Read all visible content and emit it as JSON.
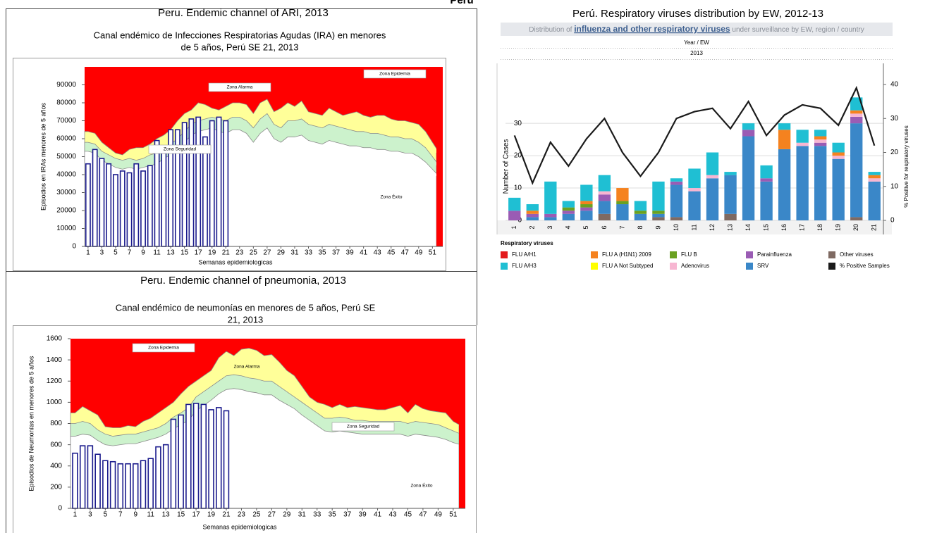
{
  "page_title": "Perú",
  "chart_data": [
    {
      "type": "area",
      "title": "Peru. Endemic channel of ARI, 2013",
      "subtitle": [
        "Canal endémico de Infecciones Respiratorias Agudas (IRA) en menores",
        "de 5 años, Perú SE 21, 2013"
      ],
      "y_label": "Episodios en IRAs menores de 5 años",
      "x_label": "Semanas epidemiologicas",
      "annotations": [
        "Zona Epidemia",
        "Zona Alarma",
        "Zona Seguridad",
        "Zona Éxito"
      ],
      "colors": {
        "epidemic": "#ff0000",
        "alarm": "#ffff99",
        "security": "#ccf2cc",
        "success": "#ffffff",
        "bars": "#1a1a8c"
      },
      "xlim": [
        0.5,
        52.5
      ],
      "xticks": [
        1,
        3,
        5,
        7,
        9,
        11,
        13,
        15,
        17,
        19,
        21,
        23,
        25,
        27,
        29,
        31,
        33,
        35,
        37,
        39,
        41,
        43,
        45,
        47,
        49,
        51
      ],
      "ylim": [
        0,
        100000
      ],
      "yticks": [
        0,
        10000,
        20000,
        30000,
        40000,
        50000,
        60000,
        70000,
        80000,
        90000
      ],
      "x": [
        1,
        2,
        3,
        4,
        5,
        6,
        7,
        8,
        9,
        10,
        11,
        12,
        13,
        14,
        15,
        16,
        17,
        18,
        19,
        20,
        21,
        22,
        23,
        24,
        25,
        26,
        27,
        28,
        29,
        30,
        31,
        32,
        33,
        34,
        35,
        36,
        37,
        38,
        39,
        40,
        41,
        42,
        43,
        44,
        45,
        46,
        47,
        48,
        49,
        50,
        51,
        52
      ],
      "bar_values": [
        46000,
        54000,
        49000,
        46000,
        40000,
        42000,
        41000,
        46000,
        42000,
        45000,
        59000,
        52000,
        65000,
        65000,
        69000,
        71000,
        72000,
        61000,
        70000,
        72000,
        70000,
        null,
        null,
        null,
        null,
        null,
        null,
        null,
        null,
        null,
        null,
        null,
        null,
        null,
        null,
        null,
        null,
        null,
        null,
        null,
        null,
        null,
        null,
        null,
        null,
        null,
        null,
        null,
        null,
        null,
        null,
        null
      ],
      "alarm_upper": [
        64000,
        63000,
        58000,
        55000,
        52000,
        51000,
        54000,
        55000,
        55000,
        57000,
        60000,
        62000,
        65000,
        70000,
        74000,
        76000,
        80000,
        79000,
        77000,
        76000,
        78000,
        80000,
        80000,
        79000,
        74000,
        80000,
        82000,
        75000,
        77000,
        80000,
        78000,
        81000,
        75000,
        74000,
        73000,
        77000,
        75000,
        73000,
        74000,
        75000,
        73000,
        72000,
        73000,
        73000,
        71000,
        70000,
        70000,
        69000,
        68000,
        64000,
        58000,
        52000
      ],
      "security_upper": [
        58000,
        57000,
        53000,
        51000,
        49000,
        48000,
        49000,
        48000,
        49000,
        51000,
        52000,
        55000,
        57000,
        60000,
        64000,
        68000,
        70000,
        71000,
        72000,
        71000,
        70000,
        72000,
        72000,
        70000,
        66000,
        71000,
        74000,
        68000,
        66000,
        70000,
        70000,
        71000,
        68000,
        67000,
        66000,
        68000,
        67000,
        66000,
        65000,
        64000,
        64000,
        63000,
        63000,
        62000,
        61000,
        61000,
        60000,
        60000,
        58000,
        55000,
        50000,
        45000
      ],
      "security_lower": [
        53000,
        52000,
        48000,
        46000,
        44000,
        43000,
        44000,
        43000,
        44000,
        45000,
        46000,
        49000,
        51000,
        54000,
        58000,
        62000,
        64000,
        65000,
        66000,
        64000,
        63000,
        65000,
        65000,
        63000,
        58000,
        63000,
        66000,
        60000,
        58000,
        61000,
        61000,
        62000,
        59000,
        58000,
        57000,
        59000,
        58000,
        57000,
        56000,
        56000,
        55000,
        55000,
        54000,
        54000,
        53000,
        53000,
        52000,
        52000,
        50000,
        47000,
        43000,
        39000
      ]
    },
    {
      "type": "area",
      "title": "Peru. Endemic channel of pneumonia, 2013",
      "subtitle": [
        "Canal endémico de neumonías en menores de 5 años, Perú SE",
        "21, 2013"
      ],
      "y_label": "Episodios de Neumonías en menores de 5 años",
      "x_label": "Semanas epidemiologicas",
      "annotations": [
        "Zona Epidemia",
        "Zona Alarma",
        "Zona Seguridad",
        "Zona Éxito"
      ],
      "colors": {
        "epidemic": "#ff0000",
        "alarm": "#ffff99",
        "security": "#ccf2cc",
        "success": "#ffffff",
        "bars": "#1a1a8c"
      },
      "xlim": [
        0.4,
        52.6
      ],
      "xticks": [
        1,
        3,
        5,
        7,
        9,
        11,
        13,
        15,
        17,
        19,
        21,
        23,
        25,
        27,
        29,
        31,
        33,
        35,
        37,
        39,
        41,
        43,
        45,
        47,
        49,
        51
      ],
      "ylim": [
        0,
        1600
      ],
      "yticks": [
        0,
        200,
        400,
        600,
        800,
        1000,
        1200,
        1400,
        1600
      ],
      "x": [
        1,
        2,
        3,
        4,
        5,
        6,
        7,
        8,
        9,
        10,
        11,
        12,
        13,
        14,
        15,
        16,
        17,
        18,
        19,
        20,
        21,
        22,
        23,
        24,
        25,
        26,
        27,
        28,
        29,
        30,
        31,
        32,
        33,
        34,
        35,
        36,
        37,
        38,
        39,
        40,
        41,
        42,
        43,
        44,
        45,
        46,
        47,
        48,
        49,
        50,
        51,
        52
      ],
      "bar_values": [
        520,
        590,
        590,
        510,
        450,
        440,
        420,
        420,
        420,
        450,
        470,
        580,
        600,
        840,
        880,
        980,
        990,
        980,
        930,
        950,
        920,
        null,
        null,
        null,
        null,
        null,
        null,
        null,
        null,
        null,
        null,
        null,
        null,
        null,
        null,
        null,
        null,
        null,
        null,
        null,
        null,
        null,
        null,
        null,
        null,
        null,
        null,
        null,
        null,
        null,
        null,
        null
      ],
      "alarm_upper": [
        900,
        960,
        920,
        880,
        770,
        760,
        760,
        780,
        770,
        820,
        850,
        900,
        950,
        1000,
        1080,
        1150,
        1200,
        1250,
        1300,
        1420,
        1480,
        1440,
        1500,
        1510,
        1490,
        1440,
        1450,
        1380,
        1300,
        1250,
        1150,
        1050,
        1000,
        980,
        950,
        980,
        950,
        960,
        950,
        940,
        930,
        930,
        950,
        970,
        900,
        980,
        940,
        920,
        910,
        900,
        820,
        780
      ],
      "security_upper": [
        800,
        820,
        800,
        740,
        700,
        680,
        690,
        700,
        700,
        720,
        740,
        760,
        800,
        860,
        900,
        950,
        1050,
        1100,
        1150,
        1200,
        1250,
        1260,
        1250,
        1230,
        1220,
        1200,
        1200,
        1150,
        1100,
        1050,
        1000,
        950,
        900,
        850,
        850,
        860,
        850,
        830,
        830,
        820,
        820,
        820,
        820,
        820,
        800,
        820,
        810,
        800,
        790,
        760,
        730,
        700
      ],
      "security_lower": [
        680,
        700,
        690,
        640,
        600,
        590,
        600,
        610,
        610,
        630,
        650,
        670,
        700,
        750,
        790,
        830,
        920,
        970,
        1020,
        1080,
        1120,
        1130,
        1120,
        1100,
        1090,
        1070,
        1070,
        1020,
        980,
        940,
        880,
        830,
        780,
        730,
        720,
        730,
        720,
        710,
        700,
        700,
        700,
        700,
        700,
        700,
        680,
        700,
        690,
        680,
        670,
        650,
        620,
        600
      ]
    },
    {
      "type": "bar",
      "stacked": true,
      "title": "Perú. Respiratory viruses distribution by EW, 2012-13",
      "subtitle": [
        "Distribution of ",
        "influenza and other respiratory viruses",
        " under surveillance by EW, region / country"
      ],
      "x_header": "Year / EW",
      "year": "2013",
      "y_label": "Number of Cases",
      "y2_label": "% Positive for respiratory viruses",
      "legend_title": "Respiratory viruses",
      "grid": true,
      "categories": [
        "1",
        "2",
        "3",
        "4",
        "5",
        "6",
        "7",
        "8",
        "9",
        "10",
        "11",
        "12",
        "13",
        "14",
        "15",
        "16",
        "17",
        "18",
        "19",
        "20",
        "21"
      ],
      "ylim": [
        0,
        42
      ],
      "yticks": [
        0,
        10,
        20,
        30
      ],
      "y2lim": [
        0,
        40
      ],
      "y2ticks": [
        0,
        10,
        20,
        30,
        40
      ],
      "series": [
        {
          "name": "FLU A/H1",
          "color": "#e31a1c",
          "values": [
            0,
            0,
            0,
            0,
            0,
            0,
            0,
            0,
            0,
            0,
            0,
            0,
            0,
            0,
            0,
            0,
            0,
            0,
            0,
            0,
            0
          ]
        },
        {
          "name": "FLU A/H3",
          "color": "#1fbfd3",
          "values": [
            4,
            2,
            10,
            2,
            5,
            5,
            0,
            3,
            9,
            1,
            6,
            7,
            1,
            2,
            4,
            2,
            4,
            2,
            3,
            4,
            1
          ]
        },
        {
          "name": "FLU A (H1N1) 2009",
          "color": "#f5821f",
          "values": [
            0,
            1,
            0,
            0,
            1,
            0,
            4,
            0,
            0,
            0,
            0,
            0,
            0,
            0,
            0,
            6,
            0,
            1,
            1,
            1,
            1
          ]
        },
        {
          "name": "FLU A Not Subtyped",
          "color": "#ffff00",
          "values": [
            0,
            0,
            0,
            0,
            0,
            0,
            0,
            0,
            0,
            0,
            0,
            0,
            0,
            0,
            0,
            0,
            0,
            0,
            0,
            0,
            0
          ]
        },
        {
          "name": "FLU B",
          "color": "#6aa121",
          "values": [
            0,
            0,
            0,
            1,
            1,
            0,
            1,
            1,
            1,
            0,
            0,
            0,
            0,
            0,
            0,
            0,
            0,
            0,
            0,
            0,
            0
          ]
        },
        {
          "name": "Adenovirus",
          "color": "#f7b6d2",
          "values": [
            0,
            0,
            0,
            0,
            0,
            1,
            0,
            0,
            0,
            0,
            1,
            1,
            0,
            0,
            0,
            0,
            1,
            1,
            1,
            1,
            1
          ]
        },
        {
          "name": "Parainfluenza",
          "color": "#9a5cb4",
          "values": [
            3,
            1,
            1,
            1,
            1,
            2,
            0,
            0,
            0,
            1,
            0,
            0,
            0,
            2,
            1,
            0,
            0,
            1,
            0,
            2,
            0
          ]
        },
        {
          "name": "SRV",
          "color": "#3a87c8",
          "values": [
            0,
            1,
            1,
            2,
            3,
            4,
            5,
            2,
            1,
            10,
            9,
            13,
            12,
            26,
            12,
            22,
            23,
            23,
            19,
            29,
            12
          ]
        },
        {
          "name": "Other viruses",
          "color": "#7f6a62",
          "values": [
            0,
            0,
            0,
            0,
            0,
            2,
            0,
            0,
            1,
            1,
            0,
            0,
            2,
            0,
            0,
            0,
            0,
            0,
            0,
            1,
            0
          ]
        },
        {
          "name": "% Positive Samples",
          "color": "#1a1a1a",
          "type": "line",
          "axis": "y2",
          "values": [
            25,
            11,
            23,
            16,
            24,
            30,
            20,
            13,
            20,
            30,
            32,
            33,
            27,
            35,
            25,
            31,
            34,
            33,
            28,
            39,
            22
          ]
        }
      ]
    }
  ]
}
